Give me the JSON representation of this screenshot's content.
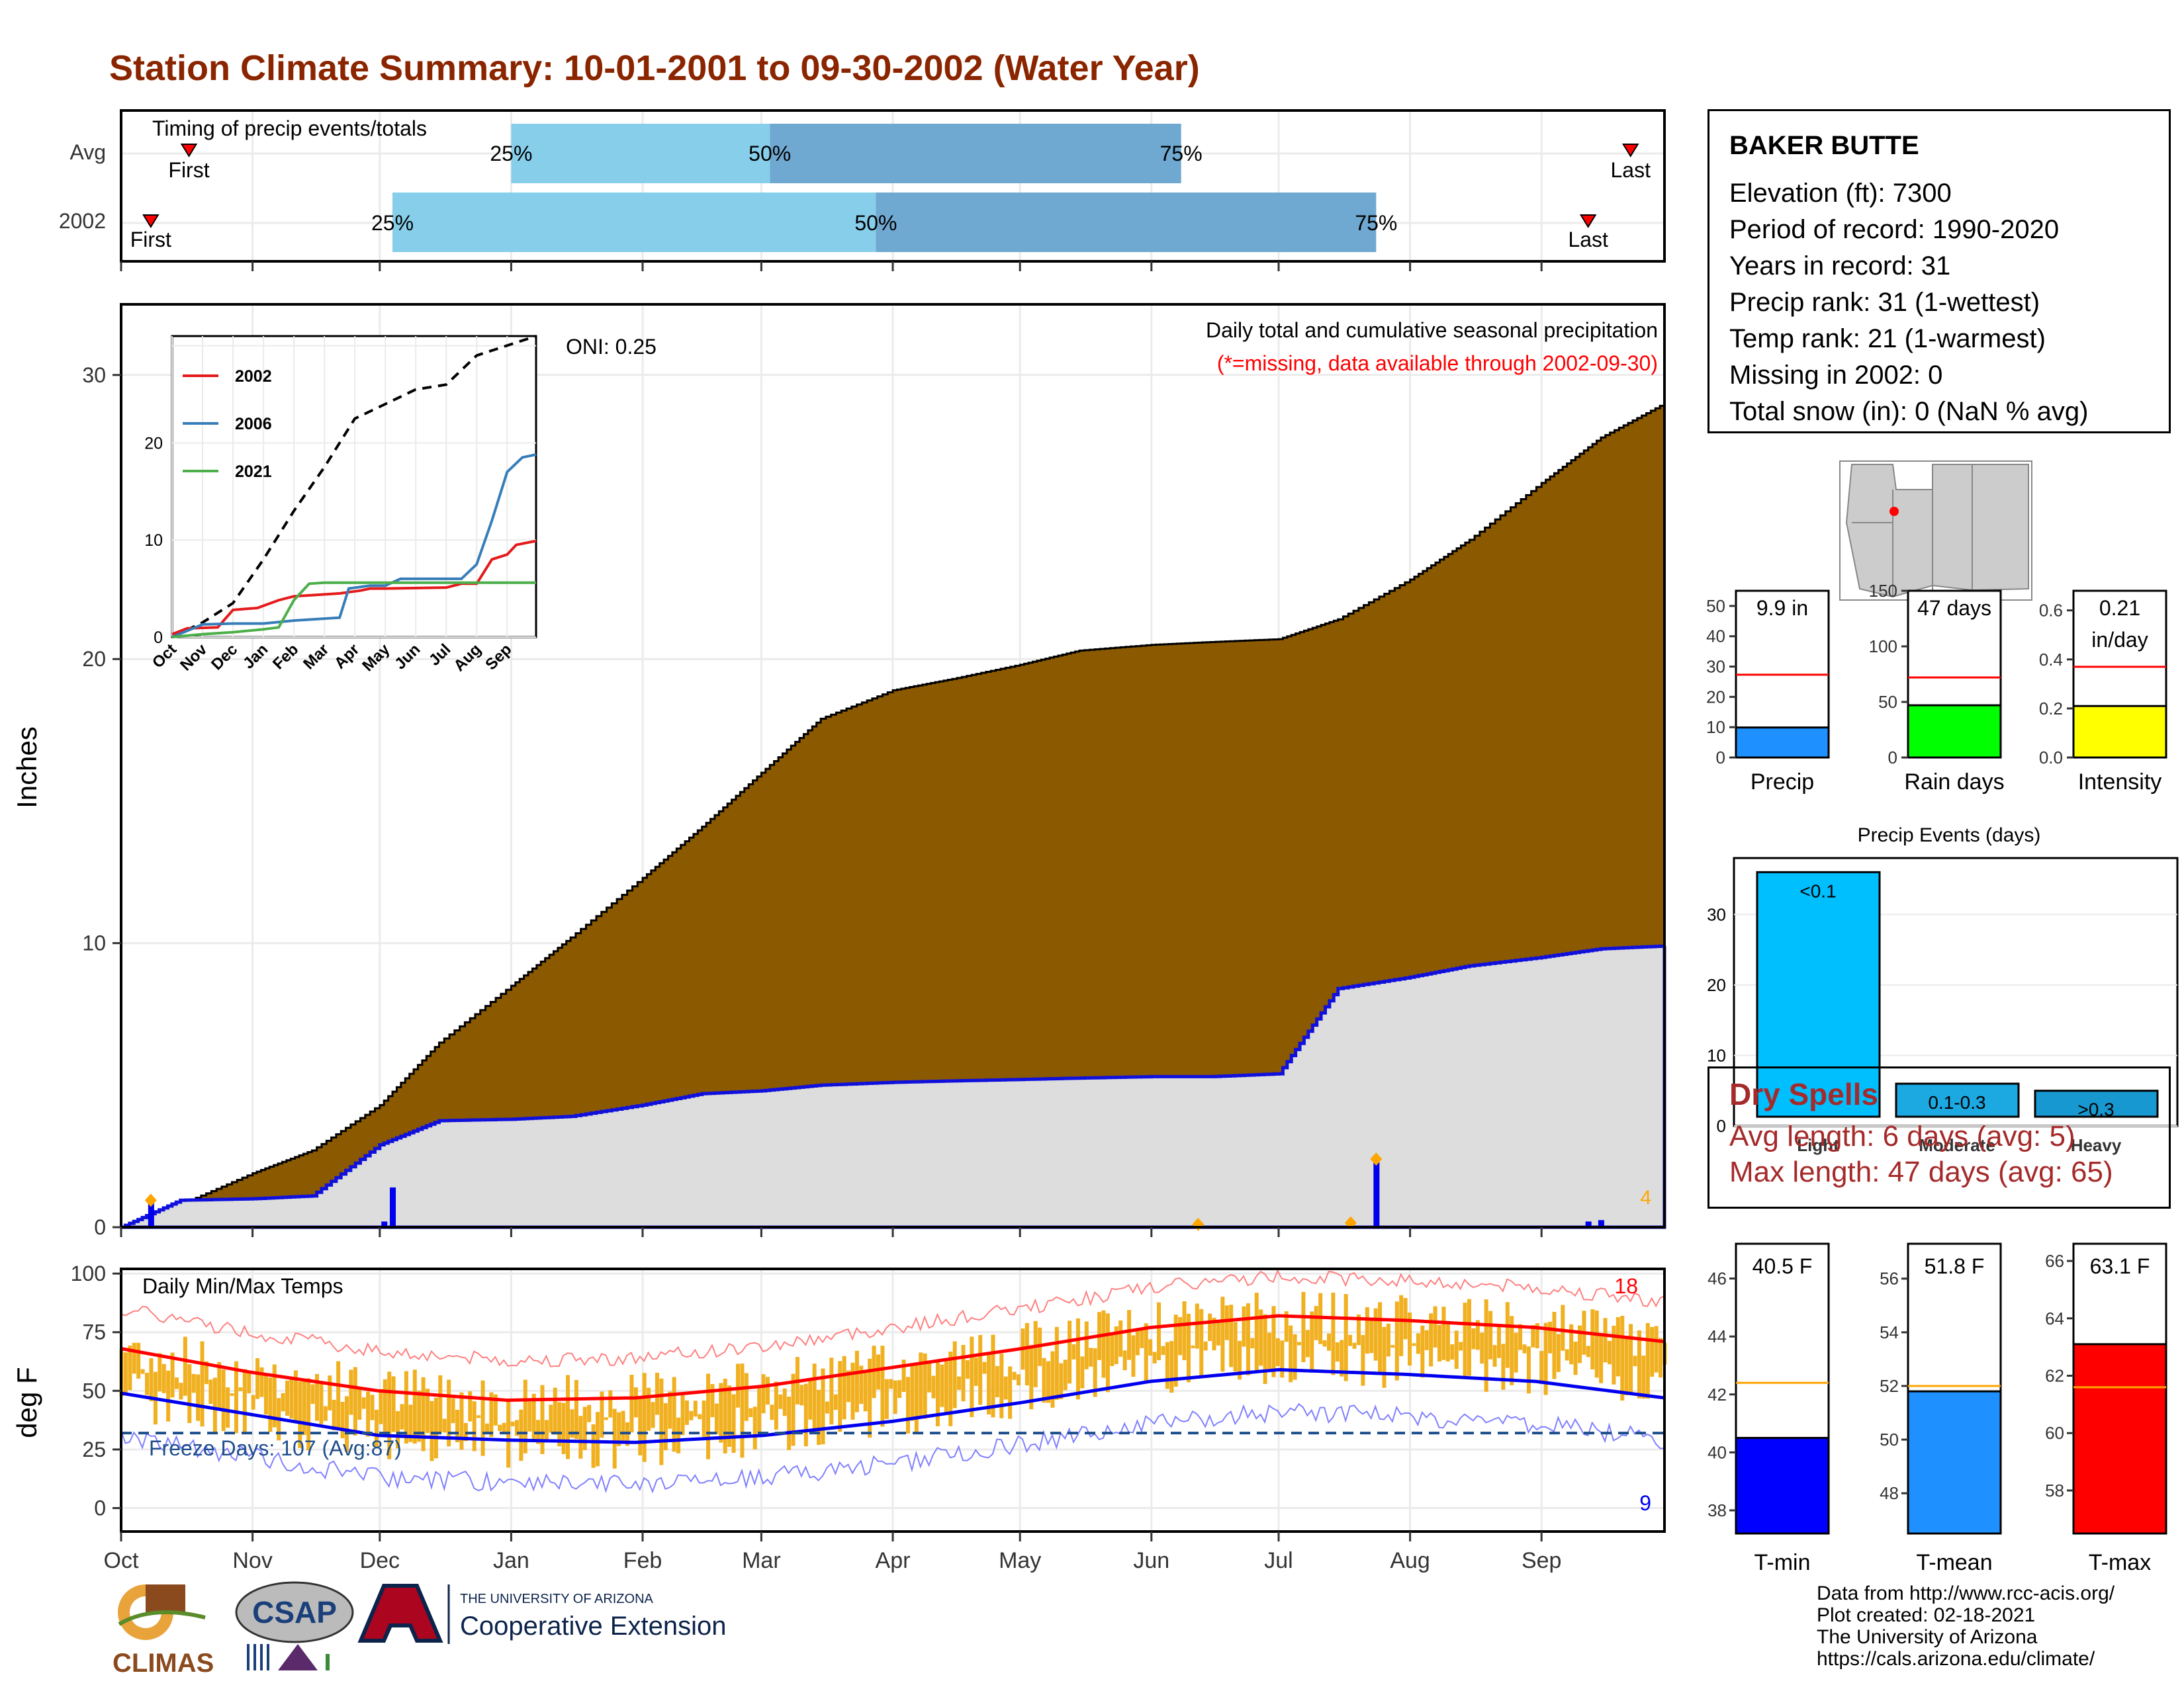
{
  "title": "Station Climate Summary: 10-01-2001 to 09-30-2002 (Water Year)",
  "colors": {
    "title": "#8B2500",
    "precip_fill": "#8B5A00",
    "avg_fill": "#DDDDDD",
    "avg_line": "#0000EE",
    "q_light": "#87CEEB",
    "q_dark": "#6FA8D0",
    "tmax_bar": "#F0B020",
    "tmax_avg": "#FF0000",
    "tmin_avg": "#0000EE",
    "dry": "#A52A2A"
  },
  "timing": {
    "title": "Timing of precip events/totals",
    "rows": [
      "Avg",
      "2002"
    ],
    "avg": {
      "first": "First",
      "last": "Last",
      "p25": "25%",
      "p50": "50%",
      "p75": "75%",
      "first_date": "2001-10-17",
      "p25_date": "2002-01-01",
      "p50_date": "2002-03-03",
      "p75_date": "2002-06-08",
      "last_date": "2002-09-22"
    },
    "y2002": {
      "first": "First",
      "last": "Last",
      "p25": "25%",
      "p50": "50%",
      "p75": "75%",
      "first_date": "2001-10-08",
      "p25_date": "2001-12-04",
      "p50_date": "2002-03-28",
      "p75_date": "2002-07-24",
      "last_date": "2002-09-12"
    }
  },
  "precip_panel": {
    "ylabel": "Inches",
    "title": "Daily total and cumulative seasonal precipitation",
    "note": "(*=missing, data available through 2002-09-30)",
    "oni": "ONI: 0.25",
    "extreme_count": "4",
    "yticks": [
      "0",
      "10",
      "20",
      "30"
    ]
  },
  "inset": {
    "legend": [
      "2002",
      "2006",
      "2021"
    ],
    "colors": [
      "#E41A1C",
      "#377EB8",
      "#4DAF4A"
    ],
    "yticks": [
      "0",
      "10",
      "20"
    ],
    "months": [
      "Oct",
      "Nov",
      "Dec",
      "Jan",
      "Feb",
      "Mar",
      "Apr",
      "May",
      "Jun",
      "Jul",
      "Aug",
      "Sep"
    ]
  },
  "temp_panel": {
    "ylabel": "deg F",
    "title": "Daily Min/Max Temps",
    "freeze": "Freeze Days: 107 (Avg:87)",
    "hot_count": "18",
    "cold_count": "9",
    "yticks": [
      "0",
      "25",
      "50",
      "75",
      "100"
    ]
  },
  "months": [
    "Oct",
    "Nov",
    "Dec",
    "Jan",
    "Feb",
    "Mar",
    "Apr",
    "May",
    "Jun",
    "Jul",
    "Aug",
    "Sep"
  ],
  "station": {
    "name": "BAKER BUTTE",
    "lines": [
      "Elevation (ft): 7300",
      "Period of record: 1990-2020",
      "Years in record: 31",
      "Precip rank: 31 (1-wettest)",
      "Temp rank: 21 (1-warmest)",
      "Missing in 2002: 0",
      "Total snow (in): 0 (NaN % avg)"
    ]
  },
  "gauges": {
    "precip": {
      "label": "Precip",
      "value": "9.9 in",
      "yticks": [
        "0",
        "10",
        "20",
        "30",
        "40",
        "50"
      ]
    },
    "rain_days": {
      "label": "Rain days",
      "value": "47 days",
      "yticks": [
        "0",
        "50",
        "100",
        "150"
      ]
    },
    "intensity": {
      "label": "Intensity",
      "value1": "0.21",
      "value2": "in/day",
      "yticks": [
        "0.0",
        "0.2",
        "0.4",
        "0.6"
      ]
    }
  },
  "events": {
    "title": "Precip Events (days)",
    "labels": [
      "Light",
      "Moderate",
      "Heavy"
    ],
    "bar_labels": [
      "<0.1",
      "0.1-0.3",
      ">0.3"
    ],
    "yticks": [
      "0",
      "10",
      "20",
      "30"
    ]
  },
  "dry": {
    "title": "Dry Spells",
    "avg": "Avg length: 6 days (avg: 5)",
    "max": "Max length: 47 days (avg: 65)"
  },
  "temps": {
    "tmin": {
      "label": "T-min",
      "value": "40.5 F",
      "yticks": [
        "38",
        "40",
        "42",
        "44",
        "46"
      ]
    },
    "tmean": {
      "label": "T-mean",
      "value": "51.8 F",
      "yticks": [
        "48",
        "50",
        "52",
        "54",
        "56"
      ]
    },
    "tmax": {
      "label": "T-max",
      "value": "63.1 F",
      "yticks": [
        "58",
        "60",
        "62",
        "64",
        "66"
      ]
    }
  },
  "logos": {
    "climas": "CLIMAS",
    "csap": "CSAP",
    "ua_line1": "THE UNIVERSITY OF ARIZONA",
    "ua_line2": "Cooperative Extension"
  },
  "credits": [
    "Data from http://www.rcc-acis.org/",
    "Plot created: 02-18-2021",
    "The University of Arizona",
    "https://cals.arizona.edu/climate/"
  ],
  "chart_data": [
    {
      "type": "area",
      "title": "Daily total and cumulative seasonal precipitation",
      "ylabel": "Inches",
      "ylim": [
        0,
        32
      ],
      "x": [
        "2001-10-01",
        "2001-10-15",
        "2001-11-01",
        "2001-11-15",
        "2001-12-01",
        "2001-12-15",
        "2002-01-01",
        "2002-01-15",
        "2002-02-01",
        "2002-02-15",
        "2002-03-01",
        "2002-03-15",
        "2002-04-01",
        "2002-04-15",
        "2002-05-01",
        "2002-05-15",
        "2002-06-01",
        "2002-06-15",
        "2002-07-01",
        "2002-07-15",
        "2002-08-01",
        "2002-08-15",
        "2002-09-01",
        "2002-09-15",
        "2002-09-30"
      ],
      "series": [
        {
          "name": "Avg cumulative",
          "values": [
            0,
            0.8,
            1.9,
            2.7,
            4.3,
            6.5,
            8.5,
            10.2,
            12.3,
            14.1,
            16.0,
            17.9,
            18.9,
            19.3,
            19.8,
            20.3,
            20.5,
            20.6,
            20.7,
            21.4,
            22.8,
            24.2,
            26.2,
            27.8,
            29.0
          ]
        },
        {
          "name": "2002 cumulative",
          "values": [
            0,
            0.95,
            1.0,
            1.1,
            2.9,
            3.75,
            3.8,
            3.9,
            4.3,
            4.7,
            4.8,
            5.0,
            5.1,
            5.15,
            5.2,
            5.25,
            5.3,
            5.3,
            5.4,
            8.4,
            8.8,
            9.2,
            9.5,
            9.8,
            9.9
          ]
        }
      ]
    },
    {
      "type": "line",
      "title": "Daily Min/Max Temps",
      "ylabel": "deg F",
      "ylim": [
        -10,
        102
      ],
      "x": [
        "2001-10-01",
        "2001-11-01",
        "2001-12-01",
        "2002-01-01",
        "2002-02-01",
        "2002-03-01",
        "2002-04-01",
        "2002-05-01",
        "2002-06-01",
        "2002-07-01",
        "2002-08-01",
        "2002-09-01",
        "2002-09-30"
      ],
      "series": [
        {
          "name": "Avg Tmax",
          "values": [
            68,
            58,
            50,
            46,
            47,
            52,
            60,
            68,
            77,
            82,
            80,
            77,
            71
          ]
        },
        {
          "name": "Avg Tmin",
          "values": [
            49,
            40,
            31,
            29,
            28,
            31,
            37,
            45,
            54,
            59,
            57,
            54,
            47
          ]
        }
      ]
    },
    {
      "type": "bar",
      "title": "Precip Events (days)",
      "categories": [
        "Light",
        "Moderate",
        "Heavy"
      ],
      "values": [
        36,
        6,
        5
      ],
      "ylim": [
        0,
        38
      ]
    }
  ]
}
